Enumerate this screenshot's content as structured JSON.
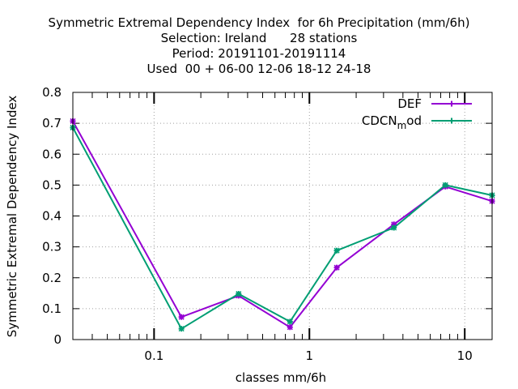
{
  "chart_data": {
    "type": "line",
    "title_lines": [
      "Symmetric Extremal Dependency Index  for 6h Precipitation (mm/6h)",
      "Selection: Ireland      28 stations",
      "Period: 20191101-20191114",
      "Used  00 + 06-00 12-06 18-12 24-18"
    ],
    "xlabel": "classes mm/6h",
    "ylabel": "Symmetric Extremal Dependency Index",
    "x_scale": "log",
    "xlim": [
      0.03,
      15
    ],
    "ylim": [
      0,
      0.8
    ],
    "x_ticks": [
      {
        "value": 0.1,
        "label": "0.1"
      },
      {
        "value": 1,
        "label": "1"
      },
      {
        "value": 10,
        "label": "10"
      }
    ],
    "y_ticks": [
      {
        "value": 0,
        "label": "0"
      },
      {
        "value": 0.1,
        "label": "0.1"
      },
      {
        "value": 0.2,
        "label": "0.2"
      },
      {
        "value": 0.3,
        "label": "0.3"
      },
      {
        "value": 0.4,
        "label": "0.4"
      },
      {
        "value": 0.5,
        "label": "0.5"
      },
      {
        "value": 0.6,
        "label": "0.6"
      },
      {
        "value": 0.7,
        "label": "0.7"
      },
      {
        "value": 0.8,
        "label": "0.8"
      }
    ],
    "grid": true,
    "legend_position": "top-right",
    "series": [
      {
        "name": "DEF",
        "color": "#9400d3",
        "points": [
          [
            0.03,
            0.707
          ],
          [
            0.15,
            0.073
          ],
          [
            0.35,
            0.142
          ],
          [
            0.75,
            0.04
          ],
          [
            1.5,
            0.233
          ],
          [
            3.5,
            0.373
          ],
          [
            7.5,
            0.495
          ],
          [
            15,
            0.448
          ]
        ]
      },
      {
        "name": "CDCN_mod",
        "color": "#009e73",
        "points": [
          [
            0.03,
            0.686
          ],
          [
            0.15,
            0.035
          ],
          [
            0.35,
            0.148
          ],
          [
            0.75,
            0.058
          ],
          [
            1.5,
            0.288
          ],
          [
            3.5,
            0.362
          ],
          [
            7.5,
            0.5
          ],
          [
            15,
            0.467
          ]
        ]
      }
    ]
  }
}
